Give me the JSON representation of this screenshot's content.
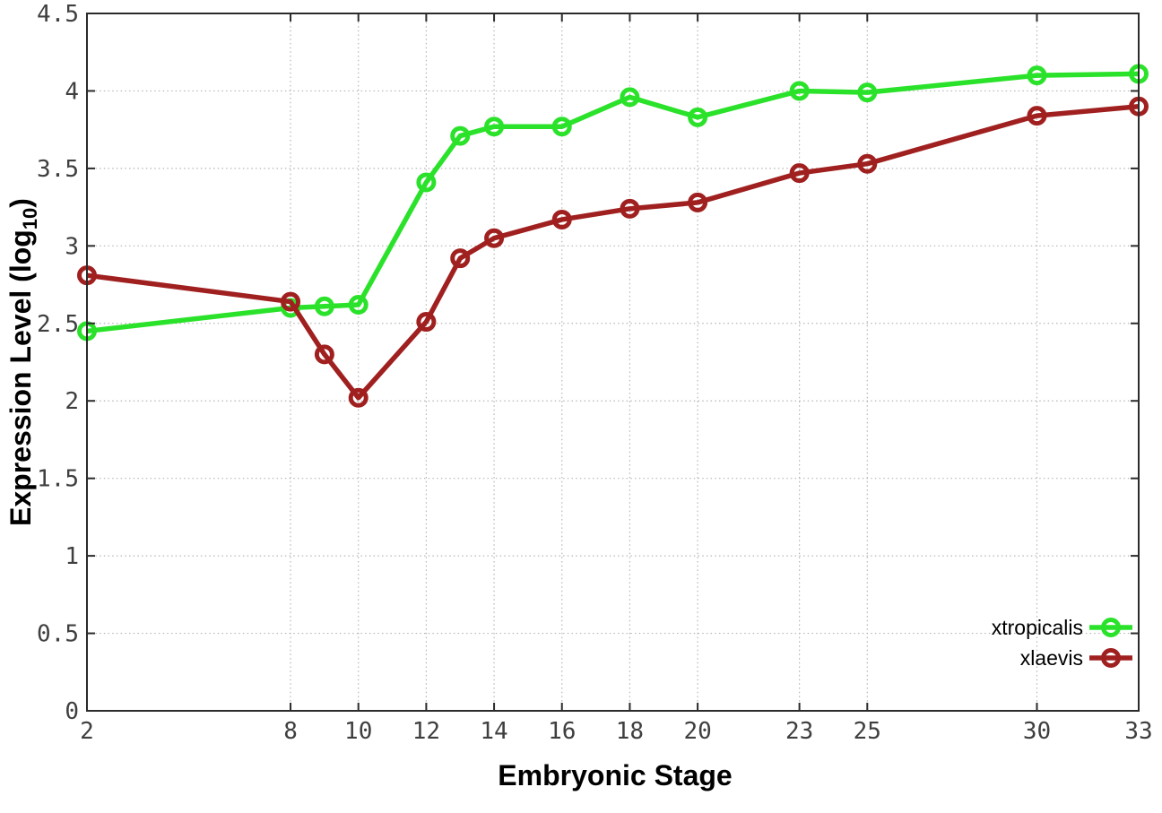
{
  "chart_data": {
    "type": "line",
    "title": "",
    "xlabel": "Embryonic Stage",
    "ylabel": {
      "prefix": "Expression Level (log",
      "subscript": "10",
      "suffix": ")"
    },
    "xlim": [
      2,
      33
    ],
    "ylim": [
      0,
      4.5
    ],
    "grid": true,
    "legend_position": "inside-bottom-right",
    "xticks": [
      {
        "value": 2,
        "label": "2"
      },
      {
        "value": 8,
        "label": "8"
      },
      {
        "value": 10,
        "label": "10"
      },
      {
        "value": 12,
        "label": "12"
      },
      {
        "value": 14,
        "label": "14"
      },
      {
        "value": 16,
        "label": "16"
      },
      {
        "value": 18,
        "label": "18"
      },
      {
        "value": 20,
        "label": "20"
      },
      {
        "value": 23,
        "label": "23"
      },
      {
        "value": 25,
        "label": "25"
      },
      {
        "value": 30,
        "label": "30"
      },
      {
        "value": 33,
        "label": "33"
      }
    ],
    "yticks": [
      {
        "value": 0,
        "label": "0"
      },
      {
        "value": 0.5,
        "label": "0.5"
      },
      {
        "value": 1,
        "label": "1"
      },
      {
        "value": 1.5,
        "label": "1.5"
      },
      {
        "value": 2,
        "label": "2"
      },
      {
        "value": 2.5,
        "label": "2.5"
      },
      {
        "value": 3,
        "label": "3"
      },
      {
        "value": 3.5,
        "label": "3.5"
      },
      {
        "value": 4,
        "label": "4"
      },
      {
        "value": 4.5,
        "label": "4.5"
      }
    ],
    "x": [
      2,
      8,
      9,
      10,
      12,
      13,
      14,
      16,
      18,
      20,
      23,
      25,
      30,
      33
    ],
    "series": [
      {
        "name": "xtropicalis",
        "color": "#2be22b",
        "values": [
          2.45,
          2.6,
          2.61,
          2.62,
          3.41,
          3.71,
          3.77,
          3.77,
          3.96,
          3.83,
          4.0,
          3.99,
          4.1,
          4.11
        ]
      },
      {
        "name": "xlaevis",
        "color": "#a02020",
        "values": [
          2.81,
          2.64,
          2.3,
          2.02,
          2.51,
          2.92,
          3.05,
          3.17,
          3.24,
          3.28,
          3.47,
          3.53,
          3.84,
          3.9
        ]
      }
    ]
  },
  "colors": {
    "background": "#ffffff",
    "grid": "#b5b5b5",
    "border": "#2b2b2b",
    "tick_text": "#3f3f3f",
    "label_text": "#000000"
  }
}
